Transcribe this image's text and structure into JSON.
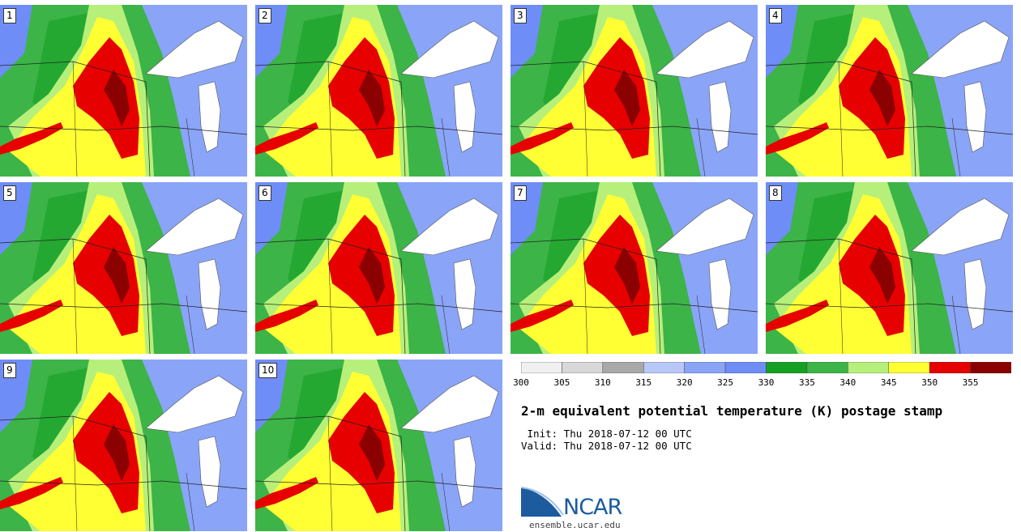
{
  "members": [
    "1",
    "2",
    "3",
    "4",
    "5",
    "6",
    "7",
    "8",
    "9",
    "10"
  ],
  "colorbar": {
    "ticks": [
      "300",
      "305",
      "310",
      "315",
      "320",
      "325",
      "330",
      "335",
      "340",
      "345",
      "350",
      "355"
    ],
    "colors": [
      "#f0f0f0",
      "#d8d8d8",
      "#a8a8a8",
      "#b8c8f8",
      "#8aa4f8",
      "#6f8df7",
      "#16a023",
      "#3cb447",
      "#b6f07a",
      "#ffff33",
      "#e60000",
      "#8b0000"
    ]
  },
  "title": "2-m equivalent potential temperature (K) postage stamp",
  "init_line": " Init: Thu 2018-07-12 00 UTC",
  "valid_line": "Valid: Thu 2018-07-12 00 UTC",
  "logo": {
    "name": "ncar-logo",
    "text": "NCAR",
    "site": "ensemble.ucar.edu",
    "color": "#1c5b9e"
  }
}
